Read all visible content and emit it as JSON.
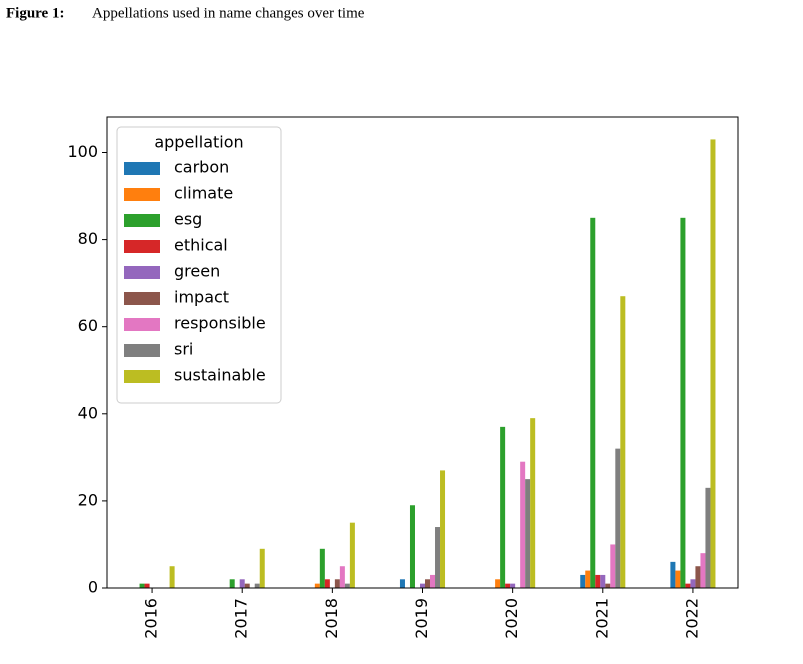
{
  "chart_data": {
    "type": "bar",
    "figure_label": "Figure 1:",
    "title": "Appellations used in name changes over time",
    "legend_title": "appellation",
    "legend": "upper left",
    "categories": [
      "2016",
      "2017",
      "2018",
      "2019",
      "2020",
      "2021",
      "2022"
    ],
    "series": [
      {
        "name": "carbon",
        "color": "#1f77b4",
        "values": [
          0,
          0,
          0,
          2,
          0,
          3,
          6
        ]
      },
      {
        "name": "climate",
        "color": "#ff7f0e",
        "values": [
          0,
          0,
          1,
          0,
          2,
          4,
          4
        ]
      },
      {
        "name": "esg",
        "color": "#2ca02c",
        "values": [
          1,
          2,
          9,
          19,
          37,
          85,
          85
        ]
      },
      {
        "name": "ethical",
        "color": "#d62728",
        "values": [
          1,
          0,
          2,
          0,
          1,
          3,
          1
        ]
      },
      {
        "name": "green",
        "color": "#9467bd",
        "values": [
          0,
          2,
          0,
          1,
          1,
          3,
          2
        ]
      },
      {
        "name": "impact",
        "color": "#8c564b",
        "values": [
          0,
          1,
          2,
          2,
          0,
          1,
          5
        ]
      },
      {
        "name": "responsible",
        "color": "#e377c2",
        "values": [
          0,
          0,
          5,
          3,
          29,
          10,
          8
        ]
      },
      {
        "name": "sri",
        "color": "#7f7f7f",
        "values": [
          0,
          1,
          1,
          14,
          25,
          32,
          23
        ]
      },
      {
        "name": "sustainable",
        "color": "#bcbd22",
        "values": [
          5,
          9,
          15,
          27,
          39,
          67,
          103
        ]
      }
    ],
    "ylim": [
      0,
      108.15
    ],
    "yticks": [
      0,
      20,
      40,
      60,
      80,
      100
    ]
  }
}
